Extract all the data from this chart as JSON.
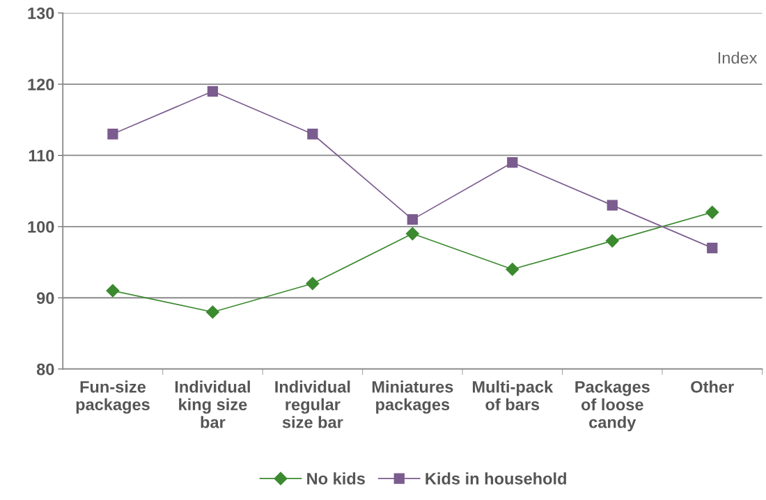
{
  "chart_data": {
    "type": "line",
    "categories": [
      "Fun-size\npackages",
      "Individual\nking size\nbar",
      "Individual\nregular\nsize bar",
      "Miniatures\npackages",
      "Multi-pack\nof bars",
      "Packages\nof loose\ncandy",
      "Other"
    ],
    "series": [
      {
        "name": "No kids",
        "color": "#3b8a2f",
        "marker": "diamond",
        "values": [
          91,
          88,
          92,
          99,
          94,
          98,
          102
        ]
      },
      {
        "name": "Kids in household",
        "color": "#7b5c8e",
        "marker": "square",
        "values": [
          113,
          119,
          113,
          101,
          109,
          103,
          97
        ]
      }
    ],
    "ylim": [
      80,
      130
    ],
    "yticks": [
      80,
      90,
      100,
      110,
      120,
      130
    ],
    "grid": "y",
    "legend": "bottom",
    "line_style": "solid",
    "annotations": [
      "Index"
    ]
  }
}
